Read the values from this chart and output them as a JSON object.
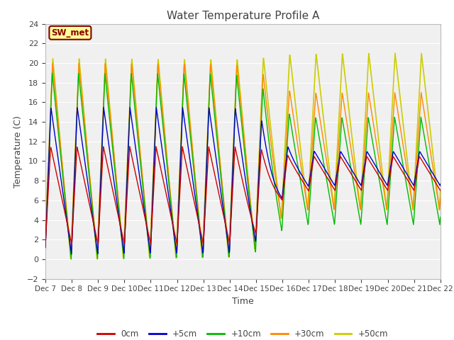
{
  "title": "Water Temperature Profile A",
  "xlabel": "Time",
  "ylabel": "Temperature (C)",
  "ylim": [
    -2,
    24
  ],
  "yticks": [
    -2,
    0,
    2,
    4,
    6,
    8,
    10,
    12,
    14,
    16,
    18,
    20,
    22,
    24
  ],
  "xtick_labels": [
    "Dec 7",
    "Dec 8",
    "Dec 9",
    "Dec 10",
    "Dec 11",
    "Dec 12",
    "Dec 13",
    "Dec 14",
    "Dec 15",
    "Dec 16",
    "Dec 17",
    "Dec 18",
    "Dec 19",
    "Dec 20",
    "Dec 21",
    "Dec 22"
  ],
  "legend_labels": [
    "0cm",
    "+5cm",
    "+10cm",
    "+30cm",
    "+50cm"
  ],
  "legend_colors": [
    "#cc0000",
    "#0000cc",
    "#00bb00",
    "#ff8800",
    "#cccc00"
  ],
  "line_widths": [
    1.0,
    1.0,
    1.0,
    1.0,
    1.2
  ],
  "annotation_text": "SW_met",
  "annotation_color": "#880000",
  "annotation_bg": "#ffff99",
  "annotation_border": "#880000",
  "fig_bg": "#ffffff",
  "plot_bg": "#f0f0f0",
  "grid_color": "#ffffff",
  "title_color": "#444444",
  "tick_color": "#444444"
}
